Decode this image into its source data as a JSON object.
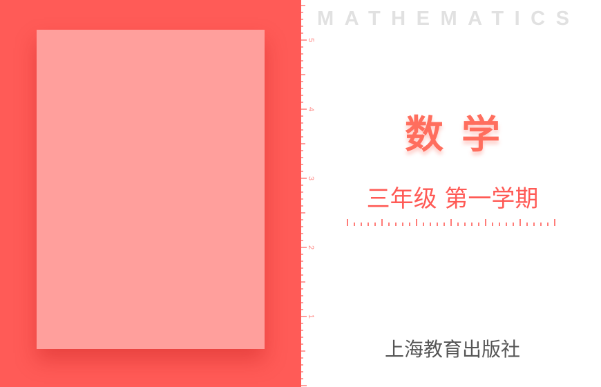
{
  "cover": {
    "header_word": "MATHEMATICS",
    "subject": "数学",
    "grade_term": "三年级 第一学期",
    "publisher": "上海教育出版社"
  },
  "ruler": {
    "labels": [
      "5",
      "4",
      "3",
      "2",
      "1"
    ]
  },
  "colors": {
    "panel_red": "#ff5b57",
    "card_pink": "#ff9f9c",
    "title_red": "#ff6e5e",
    "header_gray": "#e1e1e1",
    "publisher_gray": "#555555"
  }
}
